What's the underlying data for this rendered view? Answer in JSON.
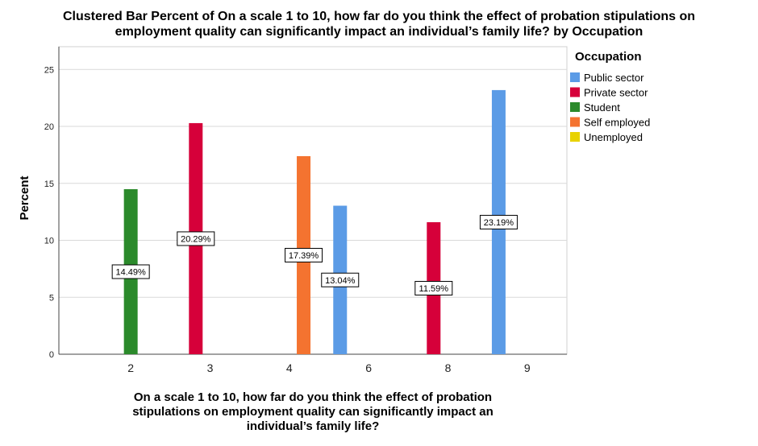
{
  "chart_data": {
    "type": "bar",
    "title_line1": "Clustered Bar Percent of On a scale 1 to 10, how far do you think the effect of probation stipulations on",
    "title_line2": "employment quality can significantly impact an individual’s family life? by Occupation",
    "xlabel_line1": "On a scale 1 to 10, how far do you think the effect of probation",
    "xlabel_line2": "stipulations on employment quality can significantly impact an",
    "xlabel_line3": "individual’s family life?",
    "ylabel": "Percent",
    "ylim": [
      0,
      27
    ],
    "yticks": [
      "0",
      "5",
      "10",
      "15",
      "20",
      "25"
    ],
    "grid": true,
    "legend_title": "Occupation",
    "legend_position": "right",
    "categories": [
      "2",
      "3",
      "4",
      "6",
      "8",
      "9"
    ],
    "series": [
      {
        "name": "Public sector",
        "color": "#5b9be6",
        "values": [
          null,
          null,
          null,
          13.04,
          null,
          23.19
        ],
        "labels": [
          "",
          "",
          "",
          "13.04%",
          "",
          "23.19%"
        ]
      },
      {
        "name": "Private sector",
        "color": "#d6003a",
        "values": [
          null,
          20.29,
          null,
          null,
          11.59,
          null
        ],
        "labels": [
          "",
          "20.29%",
          "",
          "",
          "11.59%",
          ""
        ]
      },
      {
        "name": "Student",
        "color": "#2b8a2b",
        "values": [
          14.49,
          null,
          null,
          null,
          null,
          null
        ],
        "labels": [
          "14.49%",
          "",
          "",
          "",
          "",
          ""
        ]
      },
      {
        "name": "Self employed",
        "color": "#f47330",
        "values": [
          null,
          null,
          17.39,
          null,
          null,
          null
        ],
        "labels": [
          "",
          "",
          "17.39%",
          "",
          "",
          ""
        ]
      },
      {
        "name": "Unemployed",
        "color": "#e8d200",
        "values": [
          null,
          null,
          null,
          null,
          null,
          null
        ],
        "labels": [
          "",
          "",
          "",
          "",
          "",
          ""
        ]
      }
    ]
  }
}
